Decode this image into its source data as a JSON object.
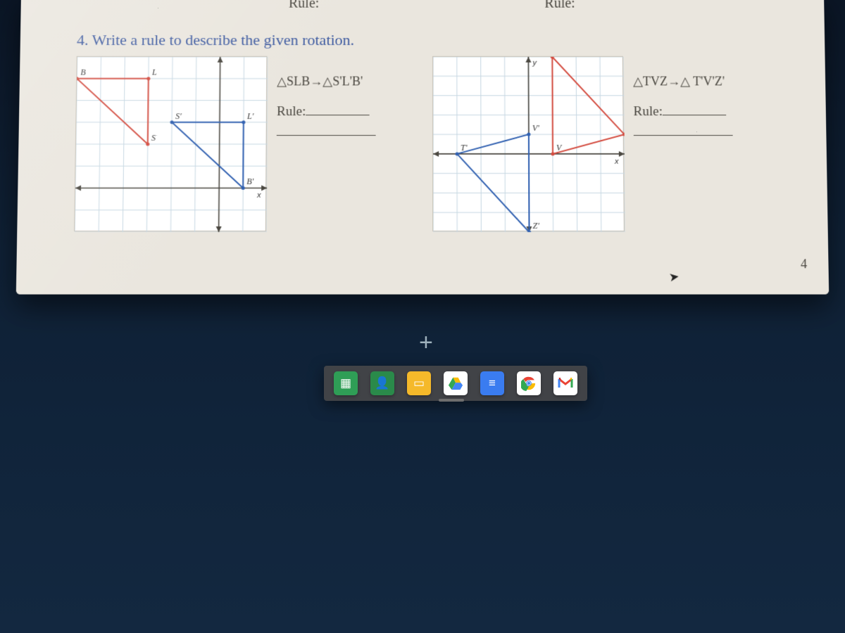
{
  "worksheet": {
    "top_rule_left": "Rule:",
    "top_rule_right": "Rule:",
    "prompt": "4. Write a rule to describe the given rotation.",
    "page_number": "4",
    "left": {
      "mapping": "△SLB→△S'L'B'",
      "rule_label": "Rule:",
      "graph": {
        "type": "rotation-grid",
        "grid_color": "#c6d7e2",
        "axis_color": "#4a4740",
        "preimage_color": "#d34b3f",
        "image_color": "#2f5fb0",
        "xlim": [
          -6,
          2
        ],
        "ylim": [
          -2,
          6
        ],
        "labels": {
          "L": "L",
          "B": "B",
          "S": "S",
          "Bp": "B'",
          "Lp": "L'",
          "Sp": "S'",
          "xaxis": "x"
        },
        "preimage_pts": {
          "S": [
            -3,
            2
          ],
          "L": [
            -3,
            5
          ],
          "B": [
            -6,
            5
          ]
        },
        "image_pts": {
          "Sp": [
            -2,
            3
          ],
          "Lp": [
            1,
            3
          ],
          "Bp": [
            1,
            0
          ]
        }
      }
    },
    "right": {
      "mapping": "△TVZ→△ T'V'Z'",
      "rule_label": "Rule:",
      "graph": {
        "type": "rotation-grid",
        "grid_color": "#c6d7e2",
        "axis_color": "#4a4740",
        "preimage_color": "#d34b3f",
        "image_color": "#2f5fb0",
        "xlim": [
          -4,
          4
        ],
        "ylim": [
          -4,
          5
        ],
        "labels": {
          "T": "T",
          "V": "V",
          "Z": "Z",
          "Tp": "T'",
          "Vp": "V'",
          "Zp": "Z'",
          "xaxis": "x",
          "yaxis": "y"
        },
        "preimage_pts": {
          "T": [
            4,
            1
          ],
          "V": [
            1,
            0
          ],
          "Z": [
            1,
            5
          ]
        },
        "image_pts": {
          "Tp": [
            -3,
            0
          ],
          "Vp": [
            0,
            1
          ],
          "Zp": [
            0,
            -4
          ]
        }
      }
    }
  },
  "dock": {
    "plus": "+",
    "apps": [
      {
        "name": "sheets",
        "bg": "#2f9e56",
        "glyph": "▦"
      },
      {
        "name": "classroom",
        "bg": "#2a8a4a",
        "glyph": "👤"
      },
      {
        "name": "slides",
        "bg": "#f5b92a",
        "glyph": "▭"
      },
      {
        "name": "drive",
        "bg": "#ffffff",
        "glyph": "drive"
      },
      {
        "name": "docs",
        "bg": "#3a7cf0",
        "glyph": "≡"
      },
      {
        "name": "chrome",
        "bg": "#ffffff",
        "glyph": "chrome"
      },
      {
        "name": "gmail",
        "bg": "#ffffff",
        "glyph": "gmail"
      }
    ]
  }
}
